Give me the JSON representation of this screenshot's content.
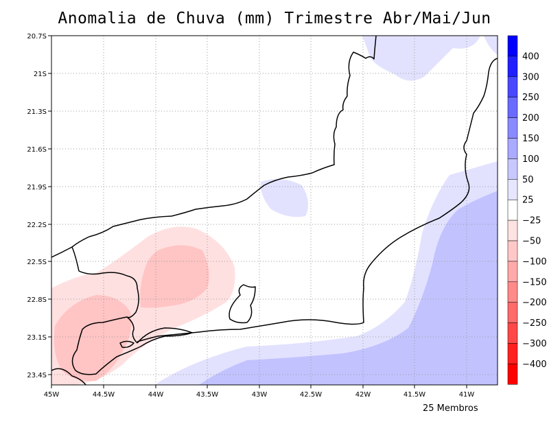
{
  "title": "Anomalia de Chuva (mm) Trimestre Abr/Mai/Jun",
  "footer": "25 Membros",
  "lat_labels": [
    "20.7S",
    "21S",
    "21.3S",
    "21.6S",
    "21.9S",
    "22.2S",
    "22.5S",
    "22.8S",
    "23.1S",
    "23.4S"
  ],
  "lon_labels": [
    "45W",
    "44.5W",
    "44W",
    "43.5W",
    "43W",
    "42.5W",
    "42W",
    "41.5W",
    "41W"
  ],
  "colorbar": {
    "labels": [
      "400",
      "300",
      "250",
      "200",
      "150",
      "100",
      "50",
      "25",
      "−25",
      "−50",
      "−100",
      "−150",
      "−200",
      "−250",
      "−300",
      "−400"
    ],
    "colors": [
      "#0000ff",
      "#2020ff",
      "#4848ff",
      "#6a6aff",
      "#8a8aff",
      "#aaaaff",
      "#c8c8ff",
      "#e6e6ff",
      "#ffffff",
      "#ffe2e2",
      "#ffc8c8",
      "#ffaaaa",
      "#ff8a8a",
      "#ff6a6a",
      "#ff4848",
      "#ff2020",
      "#ff0000"
    ]
  },
  "map_data": {
    "region": "Rio de Janeiro state, Brazil",
    "lon_range": [
      "45W",
      "40.7W"
    ],
    "lat_range": [
      "20.7S",
      "23.5S"
    ],
    "contour_colors": {
      "neutral": "#ffffff",
      "pos_25_50": "#e2e2ff",
      "pos_50_100": "#c0c0ff",
      "neg_25_50": "#ffe0e0",
      "neg_50_100": "#ffc4c4"
    },
    "grid": true
  }
}
